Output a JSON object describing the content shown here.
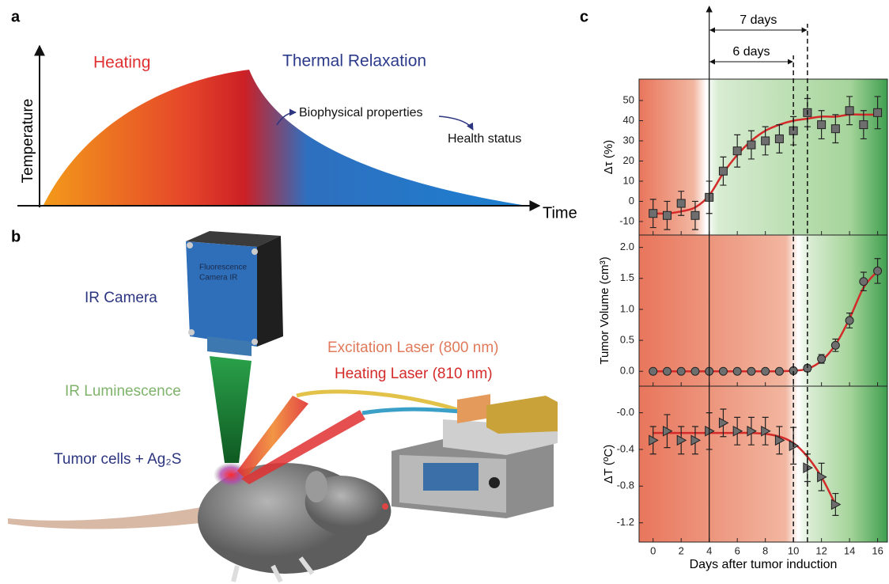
{
  "panel_a": {
    "label": "a",
    "phase_1": "Heating",
    "phase_2": "Thermal Relaxation",
    "note_1": "Biophysical properties",
    "note_2": "Health status",
    "y_label": "Temperature",
    "x_label": "Time"
  },
  "panel_b": {
    "label": "b",
    "camera": "IR Camera",
    "camera_label": [
      "Fluorescence",
      "Camera IR"
    ],
    "luminescence": "IR Luminescence",
    "tumor": "Tumor cells + Ag₂S",
    "laser_1": "Excitation Laser (800 nm)",
    "laser_2": "Heating Laser (810 nm)"
  },
  "panel_c": {
    "label": "c",
    "interval_long": "7 days",
    "interval_short": "6 days",
    "vlines": [
      4,
      10,
      11
    ]
  },
  "chart_data": [
    {
      "type": "scatter",
      "ylabel": "Δτ (%)",
      "marker": "square",
      "color": "#6e6e6e",
      "fit_color": "#d42a2a",
      "x": [
        0,
        1,
        2,
        3,
        4,
        5,
        6,
        7,
        8,
        9,
        10,
        11,
        12,
        13,
        14,
        15,
        16
      ],
      "values": [
        -6,
        -7,
        -1,
        -7,
        2,
        15,
        25,
        28,
        30,
        31,
        35,
        44,
        38,
        36,
        45,
        38,
        44
      ],
      "errors": [
        7,
        7,
        6,
        7,
        8,
        7,
        8,
        7,
        7,
        7,
        7,
        7,
        7,
        7,
        7,
        7,
        8
      ],
      "fit": [
        -6,
        -6,
        -5,
        -3,
        3,
        14,
        23,
        30,
        35,
        38,
        40,
        41,
        42,
        42,
        43,
        43,
        43
      ],
      "xlim": [
        -1,
        16.7
      ],
      "ylim": [
        -16.7,
        60.6
      ],
      "yticks": [
        -10,
        0,
        10,
        20,
        30,
        40,
        50
      ]
    },
    {
      "type": "scatter",
      "ylabel": "Tumor Volume (cm³)",
      "marker": "circle",
      "color": "#6e6e6e",
      "fit_color": "#d42a2a",
      "x": [
        0,
        1,
        2,
        3,
        4,
        5,
        6,
        7,
        8,
        9,
        10,
        11,
        12,
        13,
        14,
        15,
        16
      ],
      "values": [
        0,
        0,
        0,
        0,
        0,
        0,
        0,
        0,
        0,
        0,
        0.01,
        0.05,
        0.2,
        0.42,
        0.82,
        1.45,
        1.62
      ],
      "errors": [
        0.03,
        0.03,
        0.03,
        0.03,
        0.03,
        0.03,
        0.03,
        0.03,
        0.03,
        0.03,
        0.04,
        0.05,
        0.07,
        0.1,
        0.12,
        0.15,
        0.2
      ],
      "fit": [
        0,
        0,
        0,
        0,
        0,
        0,
        0,
        0,
        0,
        0,
        0.01,
        0.04,
        0.17,
        0.43,
        0.85,
        1.35,
        1.62
      ],
      "xlim": [
        -1,
        16.7
      ],
      "ylim": [
        -0.24,
        2.2
      ],
      "yticks": [
        {
          "value": 0,
          "label": "0.0"
        },
        0.5,
        {
          "value": 1,
          "label": "1.0"
        },
        1.5,
        {
          "value": 2,
          "label": "2.0"
        }
      ]
    },
    {
      "type": "scatter",
      "ylabel": "ΔT (ºC)",
      "xlabel": "Days after tumor induction",
      "marker": "triangle",
      "color": "#6e6e6e",
      "fit_color": "#d42a2a",
      "x": [
        0,
        1,
        2,
        3,
        4,
        5,
        6,
        7,
        8,
        9,
        10,
        11,
        12,
        13
      ],
      "values": [
        -0.3,
        -0.2,
        -0.3,
        -0.3,
        -0.2,
        -0.11,
        -0.2,
        -0.2,
        -0.2,
        -0.3,
        -0.36,
        -0.6,
        -0.7,
        -1.0
      ],
      "errors": [
        0.15,
        0.18,
        0.15,
        0.15,
        0.2,
        0.15,
        0.15,
        0.15,
        0.15,
        0.15,
        0.2,
        0.15,
        0.15,
        0.12
      ],
      "fit": [
        -0.22,
        -0.22,
        -0.22,
        -0.22,
        -0.22,
        -0.22,
        -0.22,
        -0.22,
        -0.23,
        -0.26,
        -0.33,
        -0.48,
        -0.7,
        -1.0
      ],
      "xlim": [
        -1,
        16.7
      ],
      "ylim": [
        -1.41,
        0.29
      ],
      "yticks": [
        {
          "value": 0,
          "label": "-0.0"
        },
        -0.4,
        -0.8,
        -1.2
      ],
      "xticks": [
        0,
        2,
        4,
        6,
        8,
        10,
        12,
        14,
        16
      ]
    }
  ]
}
